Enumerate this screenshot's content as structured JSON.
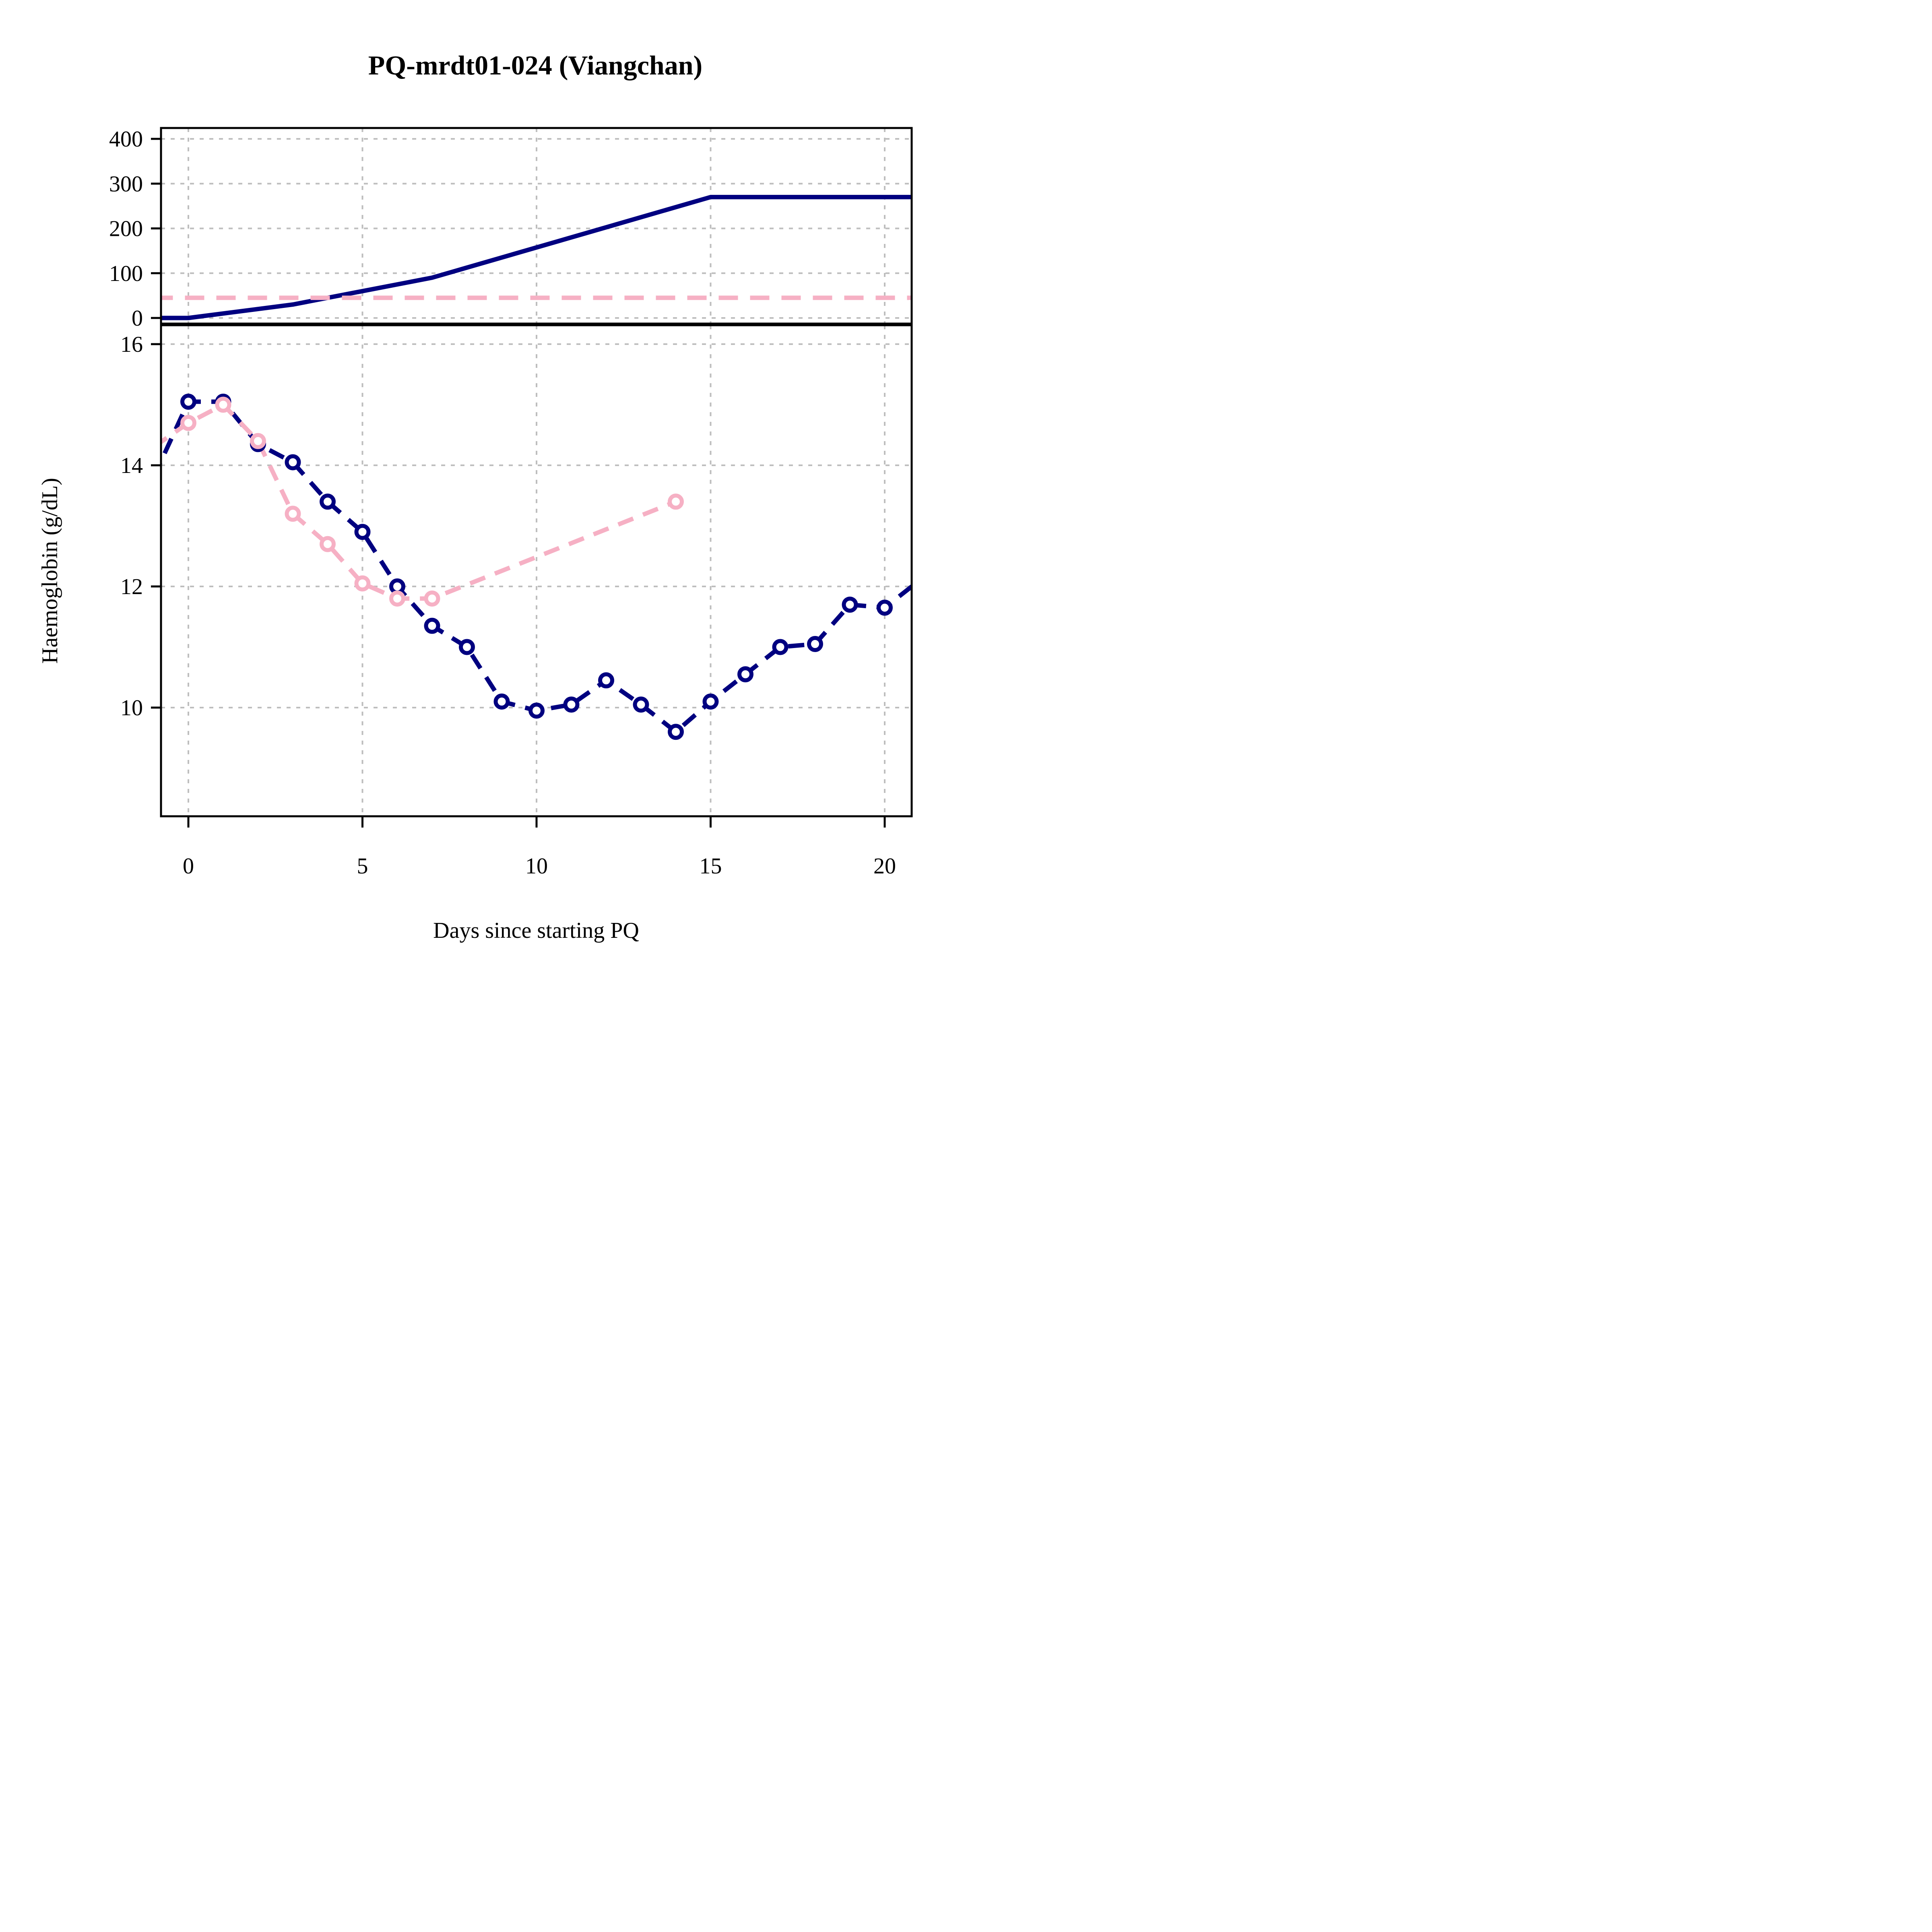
{
  "chart_data": {
    "title": "PQ-mrdt01-024 (Viangchan)",
    "xlabel": "Days since starting PQ",
    "x_ticks": [
      0,
      5,
      10,
      15,
      20
    ],
    "xlim": [
      -0.8,
      20.8
    ],
    "colors": {
      "series_a": "#000080",
      "series_b": "#f6b0c4",
      "grid": "#bebebe"
    },
    "grid": true,
    "panels": [
      {
        "type": "line",
        "ylabel": "",
        "ylim": [
          0,
          400
        ],
        "y_ticks": [
          0,
          100,
          200,
          300,
          400
        ],
        "series": [
          {
            "color": "#000080",
            "style": "solid",
            "markers": false,
            "points": [
              [
                -1,
                0
              ],
              [
                0,
                0
              ],
              [
                3,
                30
              ],
              [
                7,
                90
              ],
              [
                15,
                270
              ],
              [
                21,
                270
              ]
            ]
          },
          {
            "color": "#f6b0c4",
            "style": "dashed",
            "markers": false,
            "points": [
              [
                -1,
                45
              ],
              [
                21,
                45
              ]
            ]
          }
        ]
      },
      {
        "type": "line",
        "ylabel": "Haemoglobin (g/dL)",
        "ylim": [
          8.2,
          16
        ],
        "y_ticks": [
          10,
          12,
          14,
          16
        ],
        "series": [
          {
            "color": "#000080",
            "style": "dashed",
            "markers": true,
            "points": [
              [
                -1,
                13.8
              ],
              [
                0,
                15.05
              ],
              [
                1,
                15.05
              ],
              [
                2,
                14.35
              ],
              [
                3,
                14.05
              ],
              [
                4,
                13.4
              ],
              [
                5,
                12.9
              ],
              [
                6,
                12.0
              ],
              [
                7,
                11.35
              ],
              [
                8,
                11.0
              ],
              [
                9,
                10.1
              ],
              [
                10,
                9.95
              ],
              [
                11,
                10.05
              ],
              [
                12,
                10.45
              ],
              [
                13,
                10.05
              ],
              [
                14,
                9.6
              ],
              [
                15,
                10.1
              ],
              [
                16,
                10.55
              ],
              [
                17,
                11.0
              ],
              [
                18,
                11.05
              ],
              [
                19,
                11.7
              ],
              [
                20,
                11.65
              ],
              [
                21,
                12.1
              ]
            ]
          },
          {
            "color": "#f6b0c4",
            "style": "dashed",
            "markers": true,
            "points": [
              [
                -1,
                14.3
              ],
              [
                0,
                14.7
              ],
              [
                1,
                15.0
              ],
              [
                2,
                14.4
              ],
              [
                3,
                13.2
              ],
              [
                4,
                12.7
              ],
              [
                5,
                12.05
              ],
              [
                6,
                11.8
              ],
              [
                7,
                11.8
              ],
              [
                14,
                13.4
              ]
            ]
          }
        ]
      }
    ]
  }
}
